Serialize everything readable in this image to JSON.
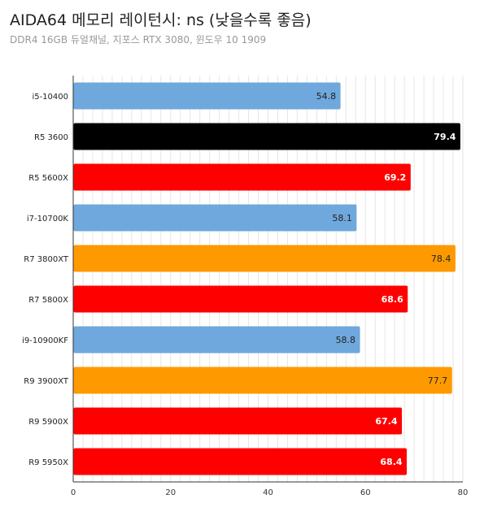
{
  "chart_data": {
    "type": "bar",
    "orientation": "horizontal",
    "title": "AIDA64 메모리 레이턴시: ns (낮을수록 좋음)",
    "subtitle": "DDR4 16GB 듀얼채널, 지포스 RTX 3080, 윈도우 10 1909",
    "categories": [
      "i5-10400",
      "R5 3600",
      "R5 5600X",
      "i7-10700K",
      "R7 3800XT",
      "R7 5800X",
      "i9-10900KF",
      "R9 3900XT",
      "R9 5900X",
      "R9 5950X"
    ],
    "values": [
      54.8,
      79.4,
      69.2,
      58.1,
      78.4,
      68.6,
      58.8,
      77.7,
      67.4,
      68.4
    ],
    "value_labels": [
      "54.8",
      "79.4",
      "69.2",
      "58.1",
      "78.4",
      "68.6",
      "58.8",
      "77.7",
      "67.4",
      "68.4"
    ],
    "bar_colors": [
      "#6fa8dc",
      "#000000",
      "#ff0000",
      "#6fa8dc",
      "#ff9900",
      "#ff0000",
      "#6fa8dc",
      "#ff9900",
      "#ff0000",
      "#ff0000"
    ],
    "label_colors": [
      "#222222",
      "#ffffff",
      "#ffffff",
      "#222222",
      "#222222",
      "#ffffff",
      "#222222",
      "#222222",
      "#ffffff",
      "#ffffff"
    ],
    "xlim": [
      0,
      80
    ],
    "xticks": [
      "0",
      "20",
      "40",
      "60",
      "80"
    ],
    "grid": true
  }
}
